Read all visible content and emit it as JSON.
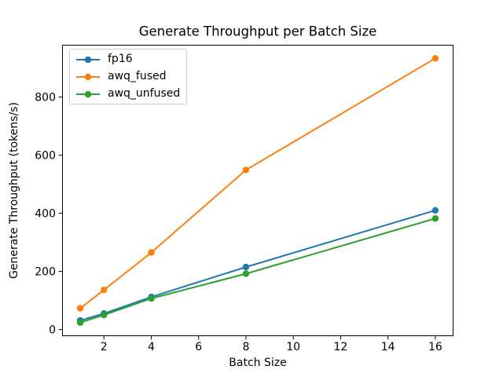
{
  "figure": {
    "title": "Generate Throughput per Batch Size",
    "xlabel": "Batch Size",
    "ylabel": "Generate Throughput (tokens/s)"
  },
  "chart_data": {
    "type": "line",
    "title": "Generate Throughput per Batch Size",
    "xlabel": "Batch Size",
    "ylabel": "Generate Throughput (tokens/s)",
    "x": [
      1,
      2,
      4,
      8,
      16
    ],
    "series": [
      {
        "name": "fp16",
        "color": "#1f77b4",
        "values": [
          31,
          55,
          112,
          215,
          410
        ]
      },
      {
        "name": "awq_fused",
        "color": "#ff7f0e",
        "values": [
          73,
          136,
          265,
          549,
          933
        ]
      },
      {
        "name": "awq_unfused",
        "color": "#2ca02c",
        "values": [
          24,
          50,
          107,
          192,
          382
        ]
      }
    ],
    "xticks": [
      "2",
      "4",
      "6",
      "8",
      "10",
      "12",
      "14",
      "16"
    ],
    "xtick_values": [
      2,
      4,
      6,
      8,
      10,
      12,
      14,
      16
    ],
    "yticks": [
      "0",
      "200",
      "400",
      "600",
      "800"
    ],
    "ytick_values": [
      0,
      200,
      400,
      600,
      800
    ],
    "xlim": [
      0.25,
      16.75
    ],
    "ylim": [
      -21.5,
      978.5
    ],
    "grid": false,
    "legend_position": "upper-left",
    "marker": "circle",
    "line_width": 2,
    "axis_color": "#000000",
    "background_color": "#ffffff"
  }
}
